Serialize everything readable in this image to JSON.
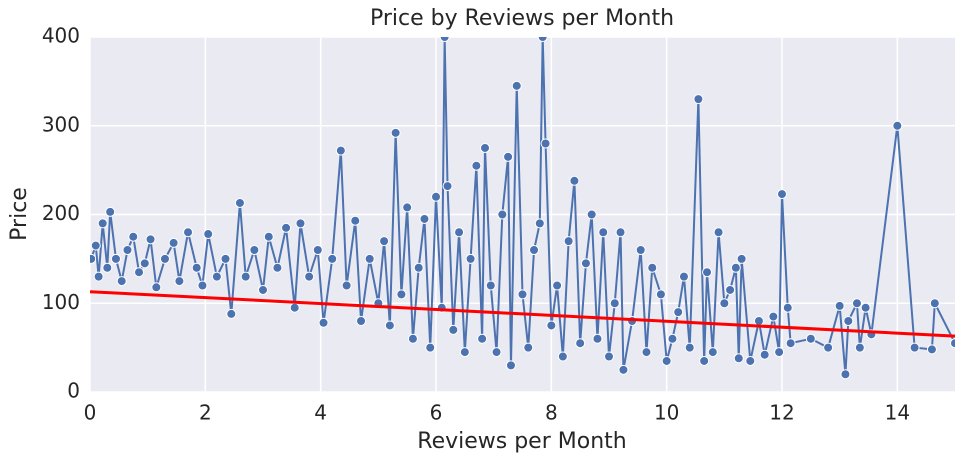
{
  "chart_data": {
    "type": "line",
    "title": "Price by Reviews per Month",
    "xlabel": "Reviews per Month",
    "ylabel": "Price",
    "xlim": [
      0,
      15
    ],
    "ylim": [
      0,
      400
    ],
    "xticks": [
      0,
      2,
      4,
      6,
      8,
      10,
      12,
      14
    ],
    "yticks": [
      0,
      100,
      200,
      300,
      400
    ],
    "grid": true,
    "series": [
      {
        "color": "#4c72b0",
        "markers": true,
        "x": [
          0.02,
          0.1,
          0.15,
          0.22,
          0.3,
          0.35,
          0.45,
          0.55,
          0.65,
          0.75,
          0.85,
          0.95,
          1.05,
          1.15,
          1.3,
          1.45,
          1.55,
          1.7,
          1.85,
          1.95,
          2.05,
          2.2,
          2.35,
          2.45,
          2.6,
          2.7,
          2.85,
          3.0,
          3.1,
          3.25,
          3.4,
          3.55,
          3.65,
          3.8,
          3.95,
          4.05,
          4.2,
          4.35,
          4.45,
          4.6,
          4.7,
          4.85,
          5.0,
          5.1,
          5.2,
          5.3,
          5.4,
          5.5,
          5.6,
          5.7,
          5.8,
          5.9,
          6.0,
          6.1,
          6.15,
          6.2,
          6.3,
          6.4,
          6.5,
          6.6,
          6.7,
          6.8,
          6.85,
          6.95,
          7.05,
          7.15,
          7.25,
          7.3,
          7.4,
          7.5,
          7.6,
          7.7,
          7.8,
          7.85,
          7.9,
          8.0,
          8.1,
          8.2,
          8.3,
          8.4,
          8.5,
          8.6,
          8.7,
          8.8,
          8.9,
          9.0,
          9.1,
          9.2,
          9.25,
          9.4,
          9.55,
          9.65,
          9.75,
          9.9,
          10.0,
          10.1,
          10.2,
          10.3,
          10.4,
          10.55,
          10.65,
          10.7,
          10.8,
          10.9,
          11.0,
          11.1,
          11.2,
          11.25,
          11.3,
          11.45,
          11.6,
          11.7,
          11.85,
          11.95,
          12.0,
          12.1,
          12.15,
          12.5,
          12.8,
          13.0,
          13.1,
          13.15,
          13.3,
          13.35,
          13.45,
          13.55,
          14.0,
          14.3,
          14.6,
          14.65,
          15.0
        ],
        "values": [
          150,
          165,
          130,
          190,
          140,
          203,
          150,
          125,
          160,
          175,
          135,
          145,
          172,
          118,
          150,
          168,
          125,
          180,
          140,
          120,
          178,
          130,
          150,
          88,
          213,
          130,
          160,
          115,
          175,
          140,
          185,
          95,
          190,
          130,
          160,
          78,
          150,
          272,
          120,
          193,
          80,
          150,
          100,
          170,
          75,
          292,
          110,
          208,
          60,
          140,
          195,
          50,
          220,
          95,
          400,
          232,
          70,
          180,
          45,
          150,
          255,
          60,
          275,
          120,
          45,
          200,
          265,
          30,
          345,
          110,
          50,
          160,
          190,
          400,
          280,
          75,
          120,
          40,
          170,
          238,
          55,
          145,
          200,
          60,
          180,
          40,
          100,
          180,
          25,
          80,
          160,
          45,
          140,
          110,
          35,
          60,
          90,
          130,
          50,
          330,
          35,
          135,
          45,
          180,
          100,
          115,
          140,
          38,
          150,
          35,
          80,
          42,
          85,
          45,
          223,
          95,
          55,
          60,
          50,
          97,
          20,
          80,
          100,
          50,
          95,
          65,
          300,
          50,
          48,
          100,
          55
        ]
      },
      {
        "color": "#ff0000",
        "markers": false,
        "x": [
          0,
          15
        ],
        "values": [
          113,
          63
        ]
      }
    ]
  }
}
